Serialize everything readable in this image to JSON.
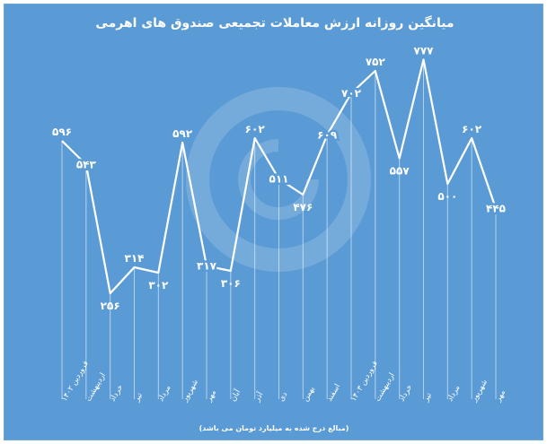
{
  "chart_data": {
    "type": "line",
    "title": "میانگین روزانه ارزش معاملات تجمیعی صندوق های اهرمی",
    "note": "(مبالغ درج شده به میلیارد تومان می باشد)",
    "categories": [
      "فروردین ۱۴۰۲",
      "اردیبهشت",
      "خرداد",
      "تیر",
      "مرداد",
      "شهریور",
      "مهر",
      "آبان",
      "آذر",
      "دی",
      "بهمن",
      "اسفند",
      "فروردین ۱۴۰۳",
      "اردیبهشت",
      "خرداد",
      "تیر",
      "مرداد",
      "شهریور",
      "مهر"
    ],
    "values": [
      596,
      543,
      256,
      314,
      302,
      592,
      317,
      306,
      602,
      511,
      476,
      609,
      702,
      752,
      557,
      777,
      500,
      602,
      445
    ],
    "value_labels": [
      "۵۹۶",
      "۵۴۳",
      "۲۵۶",
      "۳۱۴",
      "۳۰۲",
      "۵۹۲",
      "۳۱۷",
      "۳۰۶",
      "۶۰۲",
      "۵۱۱",
      "۴۷۶",
      "۶۰۹",
      "۷۰۲",
      "۷۵۲",
      "۵۵۷",
      "۷۷۷",
      "۵۰۰",
      "۶۰۲",
      "۴۴۵"
    ],
    "ylim": [
      0,
      820
    ],
    "grid": false,
    "legend": "none",
    "colors": {
      "background": "#5b9bd5",
      "line": "#ffffff",
      "text": "#ffffff"
    }
  }
}
